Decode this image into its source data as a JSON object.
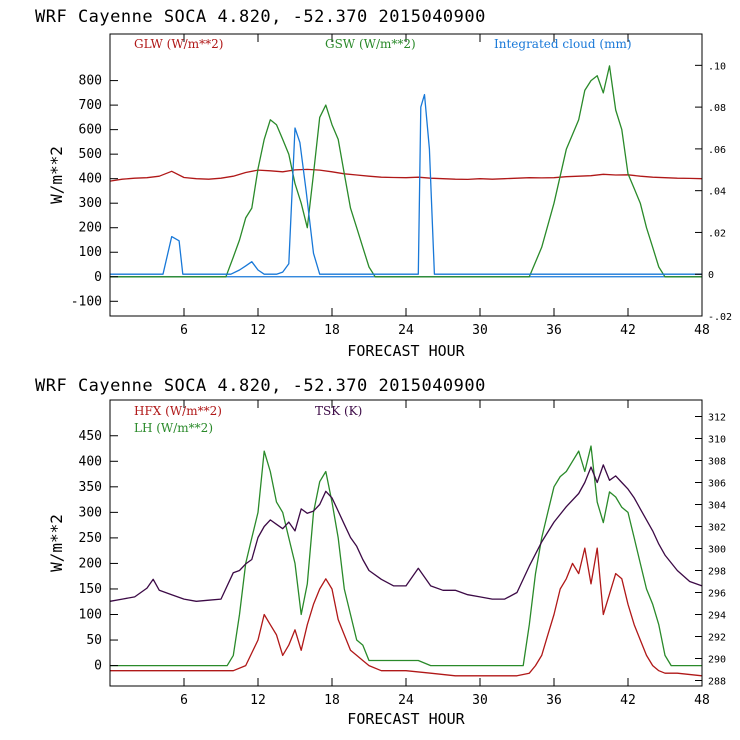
{
  "colors": {
    "glw": "#b01818",
    "gsw": "#2a8a2a",
    "cloud": "#1878d8",
    "hfx": "#b01818",
    "lh": "#2a8a2a",
    "tsk": "#3c0a46",
    "axis": "#000000"
  },
  "chart_data": [
    {
      "type": "line",
      "title": "WRF   Cayenne SOCA   4.820, -52.370  2015040900",
      "xlabel": "FORECAST HOUR",
      "ylabel": "W/m**2",
      "xlim": [
        0,
        48
      ],
      "ylim": [
        -160,
        990
      ],
      "y2lim": [
        -0.02,
        0.115
      ],
      "xticks": [
        6,
        12,
        18,
        24,
        30,
        36,
        42,
        48
      ],
      "yticks": [
        -100,
        0,
        100,
        200,
        300,
        400,
        500,
        600,
        700,
        800
      ],
      "y2ticks": [
        -0.02,
        0,
        0.02,
        0.04,
        0.06,
        0.08,
        0.1
      ],
      "y2tick_labels": [
        "-.02",
        "0",
        ".02",
        ".04",
        ".06",
        ".08",
        ".10"
      ],
      "series": [
        {
          "name": "GLW (W/m**2)",
          "axis": "left",
          "color": "#b01818",
          "x": [
            0,
            1,
            2,
            3,
            4,
            5,
            6,
            7,
            8,
            9,
            10,
            11,
            12,
            13,
            14,
            15,
            16,
            17,
            18,
            19,
            20,
            21,
            22,
            23,
            24,
            25,
            26,
            27,
            28,
            29,
            30,
            31,
            32,
            33,
            34,
            35,
            36,
            37,
            38,
            39,
            40,
            41,
            42,
            43,
            44,
            45,
            46,
            47,
            48
          ],
          "y": [
            390,
            398,
            402,
            404,
            410,
            430,
            405,
            400,
            398,
            402,
            410,
            425,
            435,
            432,
            428,
            436,
            438,
            435,
            428,
            420,
            415,
            410,
            406,
            405,
            404,
            406,
            402,
            400,
            398,
            397,
            400,
            398,
            400,
            402,
            404,
            403,
            404,
            408,
            410,
            412,
            418,
            415,
            416,
            410,
            406,
            404,
            402,
            401,
            400
          ]
        },
        {
          "name": "GSW (W/m**2)",
          "axis": "left",
          "color": "#2a8a2a",
          "x": [
            0,
            9.4,
            10,
            10.5,
            11,
            11.5,
            12,
            12.5,
            13,
            13.5,
            14,
            14.5,
            15,
            15.5,
            16,
            16.5,
            17,
            17.5,
            18,
            18.5,
            19,
            19.5,
            20,
            20.5,
            21,
            21.5,
            22,
            34,
            35,
            36,
            37,
            38,
            38.5,
            39,
            39.5,
            40,
            40.5,
            41,
            41.5,
            42,
            42.5,
            43,
            43.5,
            44,
            44.5,
            45,
            48
          ],
          "y": [
            0,
            0,
            80,
            150,
            240,
            280,
            440,
            560,
            640,
            620,
            560,
            500,
            380,
            300,
            200,
            420,
            650,
            700,
            620,
            560,
            420,
            280,
            200,
            120,
            40,
            0,
            0,
            0,
            120,
            300,
            520,
            640,
            760,
            800,
            820,
            750,
            860,
            680,
            600,
            420,
            360,
            300,
            200,
            120,
            40,
            0,
            0
          ]
        },
        {
          "name": "Integrated cloud (mm)",
          "axis": "right",
          "color": "#1878d8",
          "x": [
            0,
            4.3,
            5,
            5.6,
            5.9,
            9.8,
            10.5,
            11,
            11.5,
            12,
            12.5,
            13,
            13.5,
            14,
            14.5,
            15,
            15.4,
            15.9,
            16.5,
            17,
            17.4,
            25,
            25.2,
            25.5,
            25.9,
            26.3,
            48
          ],
          "y": [
            0,
            0,
            0.018,
            0.016,
            0,
            0,
            0.002,
            0.004,
            0.006,
            0.002,
            0,
            0,
            0,
            0.001,
            0.005,
            0.07,
            0.063,
            0.04,
            0.01,
            0,
            0,
            0,
            0.08,
            0.086,
            0.06,
            0,
            0
          ]
        }
      ],
      "legend": [
        {
          "text": "GLW (W/m**2)",
          "color": "#b01818"
        },
        {
          "text": "GSW (W/m**2)",
          "color": "#2a8a2a"
        },
        {
          "text": "Integrated cloud (mm)",
          "color": "#1878d8"
        }
      ]
    },
    {
      "type": "line",
      "title": "WRF   Cayenne SOCA   4.820, -52.370  2015040900",
      "xlabel": "FORECAST HOUR",
      "ylabel": "W/m**2",
      "xlim": [
        0,
        48
      ],
      "ylim": [
        -40,
        520
      ],
      "y2lim": [
        287.5,
        313.5
      ],
      "xticks": [
        6,
        12,
        18,
        24,
        30,
        36,
        42,
        48
      ],
      "yticks": [
        0,
        50,
        100,
        150,
        200,
        250,
        300,
        350,
        400,
        450
      ],
      "y2ticks": [
        288,
        290,
        292,
        294,
        296,
        298,
        300,
        302,
        304,
        306,
        308,
        310,
        312
      ],
      "y2tick_labels": [
        "288",
        "290",
        "292",
        "294",
        "296",
        "298",
        "300",
        "302",
        "304",
        "306",
        "308",
        "310",
        "312"
      ],
      "series": [
        {
          "name": "HFX (W/m**2)",
          "axis": "left",
          "color": "#b01818",
          "x": [
            0,
            2,
            4,
            6,
            8,
            10,
            11,
            12,
            12.5,
            13,
            13.5,
            14,
            14.5,
            15,
            15.5,
            16,
            16.5,
            17,
            17.5,
            18,
            18.5,
            19,
            19.5,
            20,
            20.5,
            21,
            22,
            24,
            26,
            28,
            30,
            32,
            33,
            34,
            34.5,
            35,
            35.5,
            36,
            36.5,
            37,
            37.5,
            38,
            38.5,
            39,
            39.5,
            40,
            40.5,
            41,
            41.5,
            42,
            42.5,
            43,
            43.5,
            44,
            44.5,
            45,
            46,
            48
          ],
          "y": [
            -10,
            -10,
            -10,
            -10,
            -10,
            -10,
            0,
            50,
            100,
            80,
            60,
            20,
            40,
            70,
            30,
            80,
            120,
            150,
            170,
            150,
            90,
            60,
            30,
            20,
            10,
            0,
            -10,
            -10,
            -15,
            -20,
            -20,
            -20,
            -20,
            -15,
            0,
            20,
            60,
            100,
            150,
            170,
            200,
            180,
            230,
            160,
            230,
            100,
            140,
            180,
            170,
            120,
            80,
            50,
            20,
            0,
            -10,
            -15,
            -15,
            -20
          ]
        },
        {
          "name": "LH (W/m**2)",
          "axis": "left",
          "color": "#2a8a2a",
          "x": [
            0,
            5,
            9.5,
            10,
            10.5,
            11,
            11.5,
            12,
            12.5,
            13,
            13.5,
            14,
            14.5,
            15,
            15.5,
            16,
            16.5,
            17,
            17.5,
            18,
            18.5,
            19,
            19.5,
            20,
            20.5,
            21,
            25,
            26,
            33.5,
            34,
            34.5,
            35,
            35.5,
            36,
            36.5,
            37,
            37.5,
            38,
            38.5,
            39,
            39.5,
            40,
            40.5,
            41,
            41.5,
            42,
            42.5,
            43,
            43.5,
            44,
            44.5,
            45,
            45.5,
            48
          ],
          "y": [
            0,
            0,
            0,
            20,
            100,
            200,
            250,
            300,
            420,
            380,
            320,
            300,
            250,
            200,
            100,
            160,
            300,
            360,
            380,
            320,
            250,
            150,
            100,
            50,
            40,
            10,
            10,
            0,
            0,
            80,
            180,
            250,
            300,
            350,
            370,
            380,
            400,
            420,
            380,
            430,
            320,
            280,
            340,
            330,
            310,
            300,
            250,
            200,
            150,
            120,
            80,
            20,
            0,
            0
          ]
        },
        {
          "name": "TSK (K)",
          "axis": "right",
          "color": "#3c0a46",
          "x": [
            0,
            1,
            2,
            3,
            3.5,
            4,
            5,
            6,
            7,
            8,
            9,
            10,
            10.5,
            11,
            11.5,
            12,
            12.5,
            13,
            13.5,
            14,
            14.5,
            15,
            15.5,
            16,
            16.5,
            17,
            17.5,
            18,
            18.5,
            19,
            19.5,
            20,
            20.5,
            21,
            22,
            23,
            24,
            25,
            26,
            27,
            28,
            29,
            30,
            31,
            32,
            33,
            34,
            35,
            36,
            37,
            38,
            38.5,
            39,
            39.5,
            40,
            40.5,
            41,
            41.5,
            42,
            42.5,
            43,
            43.5,
            44,
            44.5,
            45,
            46,
            47,
            48
          ],
          "y": [
            295.2,
            295.4,
            295.6,
            296.4,
            297.2,
            296.2,
            295.8,
            295.4,
            295.2,
            295.3,
            295.4,
            297.8,
            298,
            298.6,
            299,
            301,
            302,
            302.6,
            302.2,
            301.8,
            302.4,
            301.6,
            303.6,
            303.2,
            303.4,
            304,
            305.2,
            304.6,
            303.4,
            302.2,
            301,
            300.2,
            299,
            298,
            297.2,
            296.6,
            296.6,
            298.2,
            296.6,
            296.2,
            296.2,
            295.8,
            295.6,
            295.4,
            295.4,
            296,
            298.4,
            300.6,
            302.4,
            303.8,
            305,
            306,
            307.4,
            306,
            307.6,
            306.2,
            306.6,
            306,
            305.4,
            304.6,
            303.6,
            302.6,
            301.6,
            300.4,
            299.4,
            298,
            297,
            296.6
          ]
        }
      ],
      "legend": [
        {
          "text": "HFX (W/m**2)",
          "color": "#b01818"
        },
        {
          "text": "LH  (W/m**2)",
          "color": "#2a8a2a"
        },
        {
          "text": "TSK (K)",
          "color": "#3c0a46"
        }
      ]
    }
  ]
}
